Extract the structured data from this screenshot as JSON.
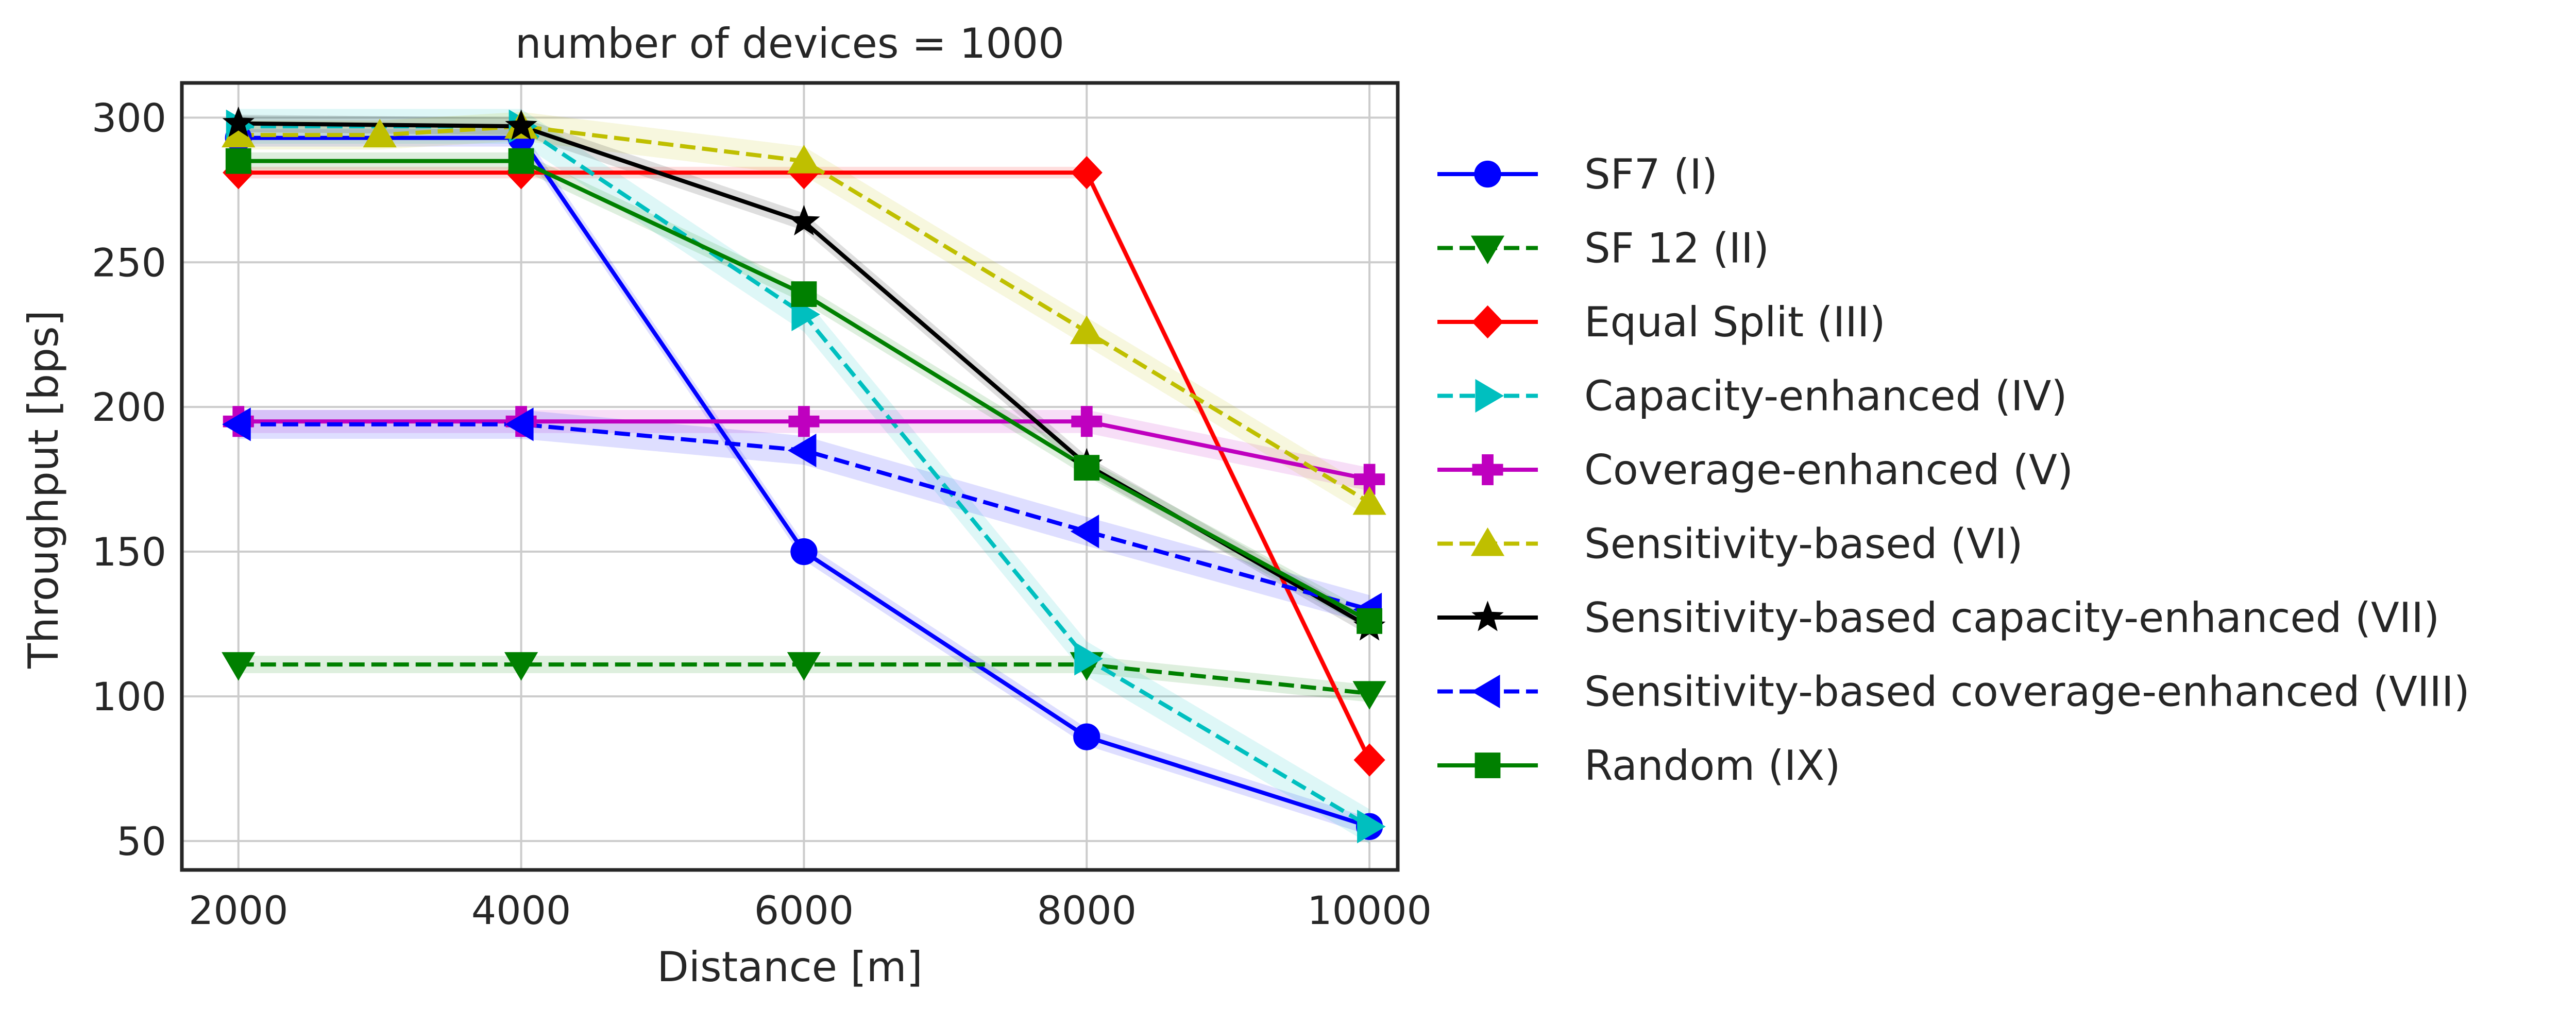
{
  "chart_data": {
    "type": "line",
    "title": "number of devices = 1000",
    "xlabel": "Distance [m]",
    "ylabel": "Throughput [bps]",
    "xlim": [
      1600,
      10200
    ],
    "ylim": [
      40,
      312
    ],
    "xticks": [
      2000,
      4000,
      6000,
      8000,
      10000
    ],
    "yticks": [
      50,
      100,
      150,
      200,
      250,
      300
    ],
    "grid": true,
    "legend_position": "outside-right",
    "series": [
      {
        "name": "SF7 (I)",
        "color": "#0000ff",
        "dash": "solid",
        "marker": "circle",
        "x": [
          2000,
          4000,
          6000,
          8000,
          10000
        ],
        "y": [
          293,
          293,
          150,
          86,
          55
        ],
        "band": 3
      },
      {
        "name": "SF 12 (II)",
        "color": "#008000",
        "dash": "dashed",
        "marker": "triangle-down",
        "x": [
          2000,
          4000,
          6000,
          8000,
          10000
        ],
        "y": [
          111,
          111,
          111,
          111,
          101
        ],
        "band": 3
      },
      {
        "name": "Equal Split (III)",
        "color": "#ff0000",
        "dash": "solid",
        "marker": "diamond",
        "x": [
          2000,
          4000,
          6000,
          8000,
          10000
        ],
        "y": [
          281,
          281,
          281,
          281,
          78
        ],
        "band": 2
      },
      {
        "name": "Capacity-enhanced (IV)",
        "color": "#00bfbf",
        "dash": "dashed",
        "marker": "triangle-right",
        "x": [
          2000,
          4000,
          6000,
          8000,
          10000
        ],
        "y": [
          297,
          297,
          232,
          113,
          55
        ],
        "band": 6
      },
      {
        "name": "Coverage-enhanced (V)",
        "color": "#bf00bf",
        "dash": "solid",
        "marker": "plus",
        "x": [
          2000,
          4000,
          6000,
          8000,
          10000
        ],
        "y": [
          195,
          195,
          195,
          195,
          175
        ],
        "band": 4
      },
      {
        "name": "Sensitivity-based (VI)",
        "color": "#bfbf00",
        "dash": "dashed",
        "marker": "triangle-up",
        "x": [
          2000,
          3000,
          4000,
          6000,
          8000,
          10000
        ],
        "y": [
          294,
          294,
          297,
          285,
          226,
          167
        ],
        "band": 5
      },
      {
        "name": "Sensitivity-based capacity-enhanced (VII)",
        "color": "#000000",
        "dash": "solid",
        "marker": "star",
        "x": [
          2000,
          4000,
          6000,
          8000,
          10000
        ],
        "y": [
          298,
          297,
          264,
          180,
          124
        ],
        "band": 3
      },
      {
        "name": "Sensitivity-based coverage-enhanced (VIII)",
        "color": "#0000ff",
        "dash": "dashed",
        "marker": "triangle-left",
        "x": [
          2000,
          4000,
          6000,
          8000,
          10000
        ],
        "y": [
          194,
          194,
          185,
          157,
          130
        ],
        "band": 5
      },
      {
        "name": "Random (IX)",
        "color": "#008000",
        "dash": "solid",
        "marker": "square",
        "x": [
          2000,
          4000,
          6000,
          8000,
          10000
        ],
        "y": [
          285,
          285,
          239,
          179,
          126
        ],
        "band": 3
      }
    ]
  }
}
